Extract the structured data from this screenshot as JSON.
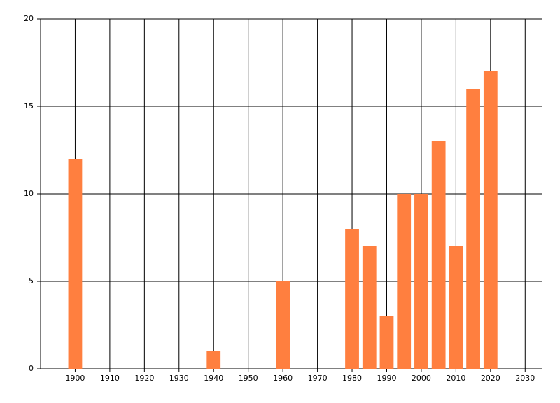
{
  "chart_data": {
    "type": "bar",
    "x": [
      1900,
      1940,
      1960,
      1980,
      1985,
      1990,
      1995,
      2000,
      2005,
      2010,
      2015,
      2020
    ],
    "values": [
      12,
      1,
      5,
      8,
      7,
      3,
      10,
      10,
      13,
      7,
      16,
      17
    ],
    "color": "#ff7f3f",
    "xlim": [
      1890,
      2035
    ],
    "xticks": [
      1900,
      1910,
      1920,
      1930,
      1940,
      1950,
      1960,
      1970,
      1980,
      1990,
      2000,
      2010,
      2020,
      2030
    ],
    "ylim": [
      0,
      20
    ],
    "yticks": [
      0,
      5,
      10,
      15,
      20
    ],
    "grid": true,
    "bar_width": 4
  }
}
